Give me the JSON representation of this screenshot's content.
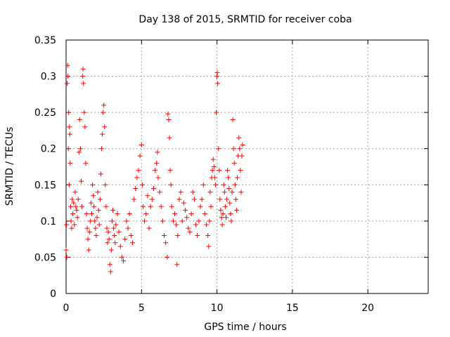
{
  "chart_data": {
    "type": "scatter",
    "title": "Day 138 of 2015, SRMTID for receiver coba",
    "xlabel": "GPS time / hours",
    "ylabel": "SRMTID / TECUs",
    "xlim": [
      0,
      24
    ],
    "ylim": [
      0,
      0.35
    ],
    "x_ticks": [
      0,
      5,
      10,
      15,
      20
    ],
    "x_tick_labels": [
      "0",
      "5",
      "10",
      "15",
      "20"
    ],
    "y_ticks": [
      0,
      0.05,
      0.1,
      0.15,
      0.2,
      0.25,
      0.3,
      0.35
    ],
    "y_tick_labels": [
      "0",
      "0.05",
      "0.1",
      "0.15",
      "0.2",
      "0.25",
      "0.3",
      "0.35"
    ],
    "grid": true,
    "marker": "+",
    "series": [
      {
        "color": "#ff0000",
        "points": [
          [
            0.0,
            0.06
          ],
          [
            0.03,
            0.095
          ],
          [
            0.05,
            0.05
          ],
          [
            0.07,
            0.29
          ],
          [
            0.1,
            0.315
          ],
          [
            0.12,
            0.3
          ],
          [
            0.15,
            0.2
          ],
          [
            0.17,
            0.25
          ],
          [
            0.2,
            0.15
          ],
          [
            0.22,
            0.23
          ],
          [
            0.25,
            0.22
          ],
          [
            0.27,
            0.18
          ],
          [
            0.3,
            0.12
          ],
          [
            0.33,
            0.1
          ],
          [
            0.37,
            0.09
          ],
          [
            0.4,
            0.13
          ],
          [
            0.45,
            0.11
          ],
          [
            0.5,
            0.125
          ],
          [
            0.55,
            0.095
          ],
          [
            0.6,
            0.14
          ],
          [
            0.65,
            0.12
          ],
          [
            0.7,
            0.115
          ],
          [
            0.75,
            0.105
          ],
          [
            0.8,
            0.13
          ],
          [
            0.85,
            0.195
          ],
          [
            0.9,
            0.24
          ],
          [
            0.95,
            0.2
          ],
          [
            1.0,
            0.155
          ],
          [
            1.05,
            0.12
          ],
          [
            1.1,
            0.3
          ],
          [
            1.12,
            0.31
          ],
          [
            1.15,
            0.29
          ],
          [
            1.2,
            0.25
          ],
          [
            1.25,
            0.23
          ],
          [
            1.3,
            0.18
          ],
          [
            1.35,
            0.11
          ],
          [
            1.4,
            0.09
          ],
          [
            1.45,
            0.075
          ],
          [
            1.5,
            0.06
          ],
          [
            1.55,
            0.085
          ],
          [
            1.6,
            0.1
          ],
          [
            1.65,
            0.125
          ],
          [
            1.7,
            0.11
          ],
          [
            1.75,
            0.15
          ],
          [
            1.8,
            0.135
          ],
          [
            1.85,
            0.12
          ],
          [
            1.9,
            0.1
          ],
          [
            1.95,
            0.09
          ],
          [
            2.0,
            0.08
          ],
          [
            2.05,
            0.105
          ],
          [
            2.1,
            0.14
          ],
          [
            2.15,
            0.115
          ],
          [
            2.2,
            0.095
          ],
          [
            2.25,
            0.13
          ],
          [
            2.3,
            0.165
          ],
          [
            2.35,
            0.2
          ],
          [
            2.4,
            0.22
          ],
          [
            2.45,
            0.25
          ],
          [
            2.5,
            0.26
          ],
          [
            2.55,
            0.23
          ],
          [
            2.6,
            0.15
          ],
          [
            2.65,
            0.12
          ],
          [
            2.7,
            0.09
          ],
          [
            2.75,
            0.07
          ],
          [
            2.8,
            0.085
          ],
          [
            2.85,
            0.075
          ],
          [
            2.9,
            0.04
          ],
          [
            2.95,
            0.03
          ],
          [
            3.0,
            0.06
          ],
          [
            3.05,
            0.1
          ],
          [
            3.1,
            0.115
          ],
          [
            3.15,
            0.09
          ],
          [
            3.2,
            0.08
          ],
          [
            3.25,
            0.07
          ],
          [
            3.3,
            0.095
          ],
          [
            3.4,
            0.11
          ],
          [
            3.5,
            0.085
          ],
          [
            3.6,
            0.065
          ],
          [
            3.7,
            0.05
          ],
          [
            3.8,
            0.045
          ],
          [
            3.9,
            0.075
          ],
          [
            4.0,
            0.1
          ],
          [
            4.1,
            0.09
          ],
          [
            4.2,
            0.11
          ],
          [
            4.3,
            0.08
          ],
          [
            4.4,
            0.07
          ],
          [
            4.5,
            0.13
          ],
          [
            4.6,
            0.145
          ],
          [
            4.7,
            0.16
          ],
          [
            4.8,
            0.17
          ],
          [
            4.9,
            0.19
          ],
          [
            5.0,
            0.205
          ],
          [
            5.05,
            0.15
          ],
          [
            5.1,
            0.12
          ],
          [
            5.2,
            0.1
          ],
          [
            5.3,
            0.11
          ],
          [
            5.4,
            0.135
          ],
          [
            5.5,
            0.09
          ],
          [
            5.6,
            0.12
          ],
          [
            5.7,
            0.13
          ],
          [
            5.8,
            0.145
          ],
          [
            5.9,
            0.17
          ],
          [
            6.0,
            0.18
          ],
          [
            6.05,
            0.195
          ],
          [
            6.1,
            0.16
          ],
          [
            6.2,
            0.14
          ],
          [
            6.3,
            0.12
          ],
          [
            6.4,
            0.1
          ],
          [
            6.5,
            0.08
          ],
          [
            6.6,
            0.07
          ],
          [
            6.7,
            0.05
          ],
          [
            6.75,
            0.248
          ],
          [
            6.8,
            0.24
          ],
          [
            6.85,
            0.215
          ],
          [
            6.9,
            0.17
          ],
          [
            6.95,
            0.15
          ],
          [
            7.0,
            0.12
          ],
          [
            7.1,
            0.1
          ],
          [
            7.2,
            0.11
          ],
          [
            7.3,
            0.095
          ],
          [
            7.35,
            0.04
          ],
          [
            7.4,
            0.08
          ],
          [
            7.5,
            0.13
          ],
          [
            7.6,
            0.14
          ],
          [
            7.7,
            0.1
          ],
          [
            7.8,
            0.125
          ],
          [
            7.9,
            0.115
          ],
          [
            8.0,
            0.105
          ],
          [
            8.1,
            0.09
          ],
          [
            8.2,
            0.085
          ],
          [
            8.3,
            0.11
          ],
          [
            8.4,
            0.14
          ],
          [
            8.5,
            0.13
          ],
          [
            8.6,
            0.095
          ],
          [
            8.7,
            0.08
          ],
          [
            8.8,
            0.1
          ],
          [
            8.9,
            0.12
          ],
          [
            9.0,
            0.13
          ],
          [
            9.1,
            0.15
          ],
          [
            9.2,
            0.11
          ],
          [
            9.3,
            0.095
          ],
          [
            9.4,
            0.08
          ],
          [
            9.45,
            0.065
          ],
          [
            9.5,
            0.1
          ],
          [
            9.55,
            0.14
          ],
          [
            9.6,
            0.12
          ],
          [
            9.65,
            0.16
          ],
          [
            9.7,
            0.17
          ],
          [
            9.75,
            0.185
          ],
          [
            9.8,
            0.175
          ],
          [
            9.85,
            0.16
          ],
          [
            9.9,
            0.15
          ],
          [
            9.95,
            0.25
          ],
          [
            10.0,
            0.3
          ],
          [
            10.02,
            0.305
          ],
          [
            10.05,
            0.29
          ],
          [
            10.1,
            0.2
          ],
          [
            10.15,
            0.17
          ],
          [
            10.2,
            0.13
          ],
          [
            10.25,
            0.115
          ],
          [
            10.3,
            0.105
          ],
          [
            10.35,
            0.095
          ],
          [
            10.4,
            0.11
          ],
          [
            10.45,
            0.15
          ],
          [
            10.5,
            0.14
          ],
          [
            10.55,
            0.12
          ],
          [
            10.6,
            0.105
          ],
          [
            10.65,
            0.13
          ],
          [
            10.7,
            0.17
          ],
          [
            10.75,
            0.16
          ],
          [
            10.8,
            0.145
          ],
          [
            10.85,
            0.125
          ],
          [
            10.9,
            0.11
          ],
          [
            10.95,
            0.1
          ],
          [
            11.0,
            0.14
          ],
          [
            11.05,
            0.24
          ],
          [
            11.1,
            0.2
          ],
          [
            11.15,
            0.18
          ],
          [
            11.2,
            0.15
          ],
          [
            11.25,
            0.13
          ],
          [
            11.3,
            0.115
          ],
          [
            11.35,
            0.16
          ],
          [
            11.4,
            0.19
          ],
          [
            11.45,
            0.215
          ],
          [
            11.5,
            0.2
          ],
          [
            11.55,
            0.17
          ],
          [
            11.6,
            0.14
          ],
          [
            11.65,
            0.19
          ],
          [
            11.7,
            0.205
          ]
        ]
      }
    ]
  }
}
